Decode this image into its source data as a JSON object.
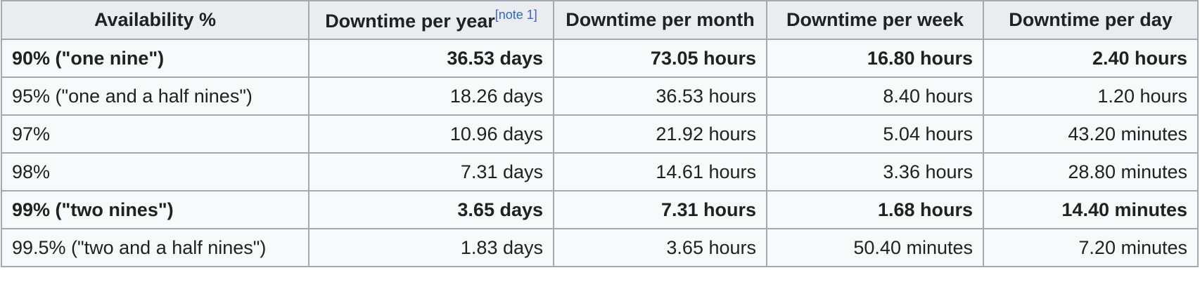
{
  "table": {
    "headers": {
      "availability": "Availability %",
      "per_year": "Downtime per year",
      "per_year_note": "[note 1]",
      "per_month": "Downtime per month",
      "per_week": "Downtime per week",
      "per_day": "Downtime per day"
    },
    "rows": [
      {
        "availability": "90% (\"one nine\")",
        "year": "36.53 days",
        "month": "73.05 hours",
        "week": "16.80 hours",
        "day": "2.40 hours"
      },
      {
        "availability": "95% (\"one and a half nines\")",
        "year": "18.26 days",
        "month": "36.53 hours",
        "week": "8.40 hours",
        "day": "1.20 hours"
      },
      {
        "availability": "97%",
        "year": "10.96 days",
        "month": "21.92 hours",
        "week": "5.04 hours",
        "day": "43.20 minutes"
      },
      {
        "availability": "98%",
        "year": "7.31 days",
        "month": "14.61 hours",
        "week": "3.36 hours",
        "day": "28.80 minutes"
      },
      {
        "availability": "99% (\"two nines\")",
        "year": "3.65 days",
        "month": "7.31 hours",
        "week": "1.68 hours",
        "day": "14.40 minutes"
      },
      {
        "availability": "99.5% (\"two and a half nines\")",
        "year": "1.83 days",
        "month": "3.65 hours",
        "week": "50.40 minutes",
        "day": "7.20 minutes"
      }
    ]
  },
  "colors": {
    "border": "#a2a9b1",
    "header_bg": "#eaecf0",
    "cell_bg": "#f8f9fa",
    "text": "#202122",
    "link": "#3366cc"
  }
}
